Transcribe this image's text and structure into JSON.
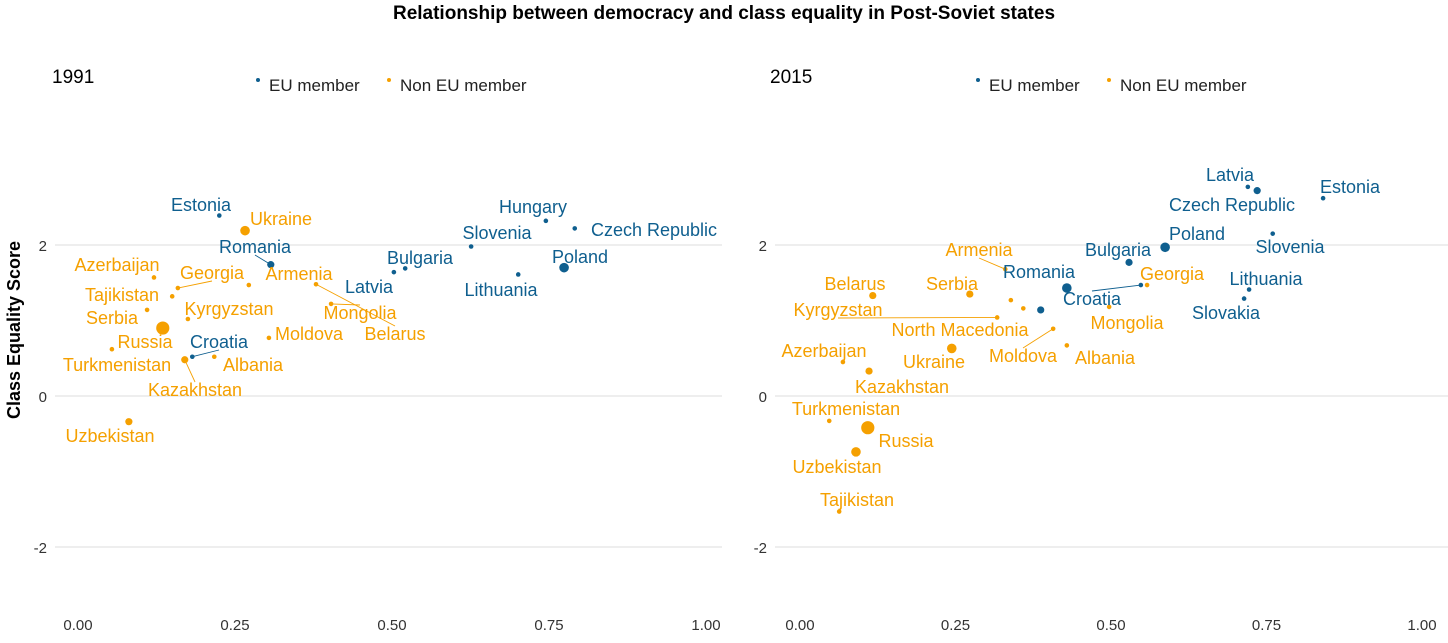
{
  "chart_data": [
    {
      "type": "scatter",
      "title": "Relationship between democracy and class equality in Post-Soviet states",
      "panel_title": "1991",
      "xlabel": "",
      "ylabel": "Class Equality Score",
      "xlim": [
        -0.05,
        1.03
      ],
      "ylim": [
        -2.8,
        3.2
      ],
      "xticks": [
        "0.00",
        "0.25",
        "0.50",
        "0.75",
        "1.00"
      ],
      "yticks": [
        "-2",
        "0",
        "2"
      ],
      "grid": "horizontal major",
      "legend": {
        "position": "top",
        "entries": [
          "EU member",
          "Non EU member"
        ]
      },
      "colors": {
        "EU member": "#0f5f8f",
        "Non EU member": "#f5a000"
      },
      "points": [
        {
          "name": "Estonia",
          "group": "EU member",
          "x": 0.225,
          "y": 2.39,
          "size": 1
        },
        {
          "name": "Ukraine",
          "group": "Non EU member",
          "x": 0.266,
          "y": 2.19,
          "size": 3
        },
        {
          "name": "Romania",
          "group": "EU member",
          "x": 0.307,
          "y": 1.74,
          "size": 2
        },
        {
          "name": "Azerbaijan",
          "group": "Non EU member",
          "x": 0.121,
          "y": 1.57,
          "size": 1
        },
        {
          "name": "Georgia",
          "group": "Non EU member",
          "x": 0.159,
          "y": 1.43,
          "size": 1
        },
        {
          "name": "Armenia",
          "group": "Non EU member",
          "x": 0.272,
          "y": 1.47,
          "size": 1
        },
        {
          "name": "Tajikistan",
          "group": "Non EU member",
          "x": 0.15,
          "y": 1.32,
          "size": 1
        },
        {
          "name": "Kyrgyzstan",
          "group": "Non EU member",
          "x": 0.175,
          "y": 1.02,
          "size": 1
        },
        {
          "name": "Serbia",
          "group": "Non EU member",
          "x": 0.11,
          "y": 1.14,
          "size": 1
        },
        {
          "name": "Russia",
          "group": "Non EU member",
          "x": 0.135,
          "y": 0.9,
          "size": 4
        },
        {
          "name": "Croatia",
          "group": "EU member",
          "x": 0.182,
          "y": 0.52,
          "size": 1
        },
        {
          "name": "Turkmenistan",
          "group": "Non EU member",
          "x": 0.054,
          "y": 0.62,
          "size": 1
        },
        {
          "name": "Albania",
          "group": "Non EU member",
          "x": 0.217,
          "y": 0.52,
          "size": 1
        },
        {
          "name": "Kazakhstan",
          "group": "Non EU member",
          "x": 0.17,
          "y": 0.48,
          "size": 2
        },
        {
          "name": "Moldova",
          "group": "Non EU member",
          "x": 0.304,
          "y": 0.77,
          "size": 1
        },
        {
          "name": "Mongolia",
          "group": "Non EU member",
          "x": 0.403,
          "y": 1.22,
          "size": 1
        },
        {
          "name": "Belarus",
          "group": "Non EU member",
          "x": 0.379,
          "y": 1.48,
          "size": 1
        },
        {
          "name": "Uzbekistan",
          "group": "Non EU member",
          "x": 0.081,
          "y": -0.34,
          "size": 2
        },
        {
          "name": "Latvia",
          "group": "EU member",
          "x": 0.503,
          "y": 1.64,
          "size": 1
        },
        {
          "name": "Bulgaria",
          "group": "EU member",
          "x": 0.521,
          "y": 1.69,
          "size": 1
        },
        {
          "name": "Slovenia",
          "group": "EU member",
          "x": 0.626,
          "y": 1.98,
          "size": 1
        },
        {
          "name": "Hungary",
          "group": "EU member",
          "x": 0.745,
          "y": 2.32,
          "size": 1
        },
        {
          "name": "Czech Republic",
          "group": "EU member",
          "x": 0.791,
          "y": 2.22,
          "size": 1
        },
        {
          "name": "Lithuania",
          "group": "EU member",
          "x": 0.701,
          "y": 1.61,
          "size": 1
        },
        {
          "name": "Poland",
          "group": "EU member",
          "x": 0.774,
          "y": 1.7,
          "size": 3
        }
      ]
    },
    {
      "type": "scatter",
      "panel_title": "2015",
      "xlabel": "",
      "ylabel": "",
      "xlim": [
        -0.05,
        1.03
      ],
      "ylim": [
        -2.8,
        3.2
      ],
      "xticks": [
        "0.00",
        "0.25",
        "0.50",
        "0.75",
        "1.00"
      ],
      "yticks": [
        "-2",
        "0",
        "2"
      ],
      "grid": "horizontal major",
      "legend": {
        "position": "top",
        "entries": [
          "EU member",
          "Non EU member"
        ]
      },
      "colors": {
        "EU member": "#0f5f8f",
        "Non EU member": "#f5a000"
      },
      "points": [
        {
          "name": "Latvia",
          "group": "EU member",
          "x": 0.72,
          "y": 2.77,
          "size": 1
        },
        {
          "name": "Czech Republic",
          "group": "EU member",
          "x": 0.735,
          "y": 2.72,
          "size": 2
        },
        {
          "name": "Estonia",
          "group": "EU member",
          "x": 0.841,
          "y": 2.62,
          "size": 1
        },
        {
          "name": "Slovenia",
          "group": "EU member",
          "x": 0.76,
          "y": 2.15,
          "size": 1
        },
        {
          "name": "Poland",
          "group": "EU member",
          "x": 0.587,
          "y": 1.97,
          "size": 3
        },
        {
          "name": "Bulgaria",
          "group": "EU member",
          "x": 0.529,
          "y": 1.77,
          "size": 2
        },
        {
          "name": "Lithuania",
          "group": "EU member",
          "x": 0.722,
          "y": 1.41,
          "size": 1
        },
        {
          "name": "Slovakia",
          "group": "EU member",
          "x": 0.714,
          "y": 1.29,
          "size": 1
        },
        {
          "name": "Croatia",
          "group": "EU member",
          "x": 0.548,
          "y": 1.47,
          "size": 1
        },
        {
          "name": "Romania",
          "group": "EU member",
          "x": 0.429,
          "y": 1.43,
          "size": 3
        },
        {
          "name": "",
          "group": "EU member",
          "x": 0.387,
          "y": 1.14,
          "size": 2
        },
        {
          "name": "Georgia",
          "group": "Non EU member",
          "x": 0.558,
          "y": 1.47,
          "size": 1
        },
        {
          "name": "Mongolia",
          "group": "Non EU member",
          "x": 0.497,
          "y": 1.18,
          "size": 1
        },
        {
          "name": "Armenia",
          "group": "Non EU member",
          "x": 0.33,
          "y": 1.68,
          "size": 1
        },
        {
          "name": "North Macedonia",
          "group": "Non EU member",
          "x": 0.339,
          "y": 1.27,
          "size": 1
        },
        {
          "name": "",
          "group": "Non EU member",
          "x": 0.359,
          "y": 1.16,
          "size": 1
        },
        {
          "name": "Belarus",
          "group": "Non EU member",
          "x": 0.117,
          "y": 1.33,
          "size": 2
        },
        {
          "name": "Serbia",
          "group": "Non EU member",
          "x": 0.273,
          "y": 1.35,
          "size": 2
        },
        {
          "name": "Kyrgyzstan",
          "group": "Non EU member",
          "x": 0.317,
          "y": 1.04,
          "size": 1
        },
        {
          "name": "Ukraine",
          "group": "Non EU member",
          "x": 0.244,
          "y": 0.63,
          "size": 3
        },
        {
          "name": "Moldova",
          "group": "Non EU member",
          "x": 0.407,
          "y": 0.89,
          "size": 1
        },
        {
          "name": "Albania",
          "group": "Non EU member",
          "x": 0.429,
          "y": 0.67,
          "size": 1
        },
        {
          "name": "Azerbaijan",
          "group": "Non EU member",
          "x": 0.069,
          "y": 0.45,
          "size": 1
        },
        {
          "name": "Kazakhstan",
          "group": "Non EU member",
          "x": 0.111,
          "y": 0.33,
          "size": 2
        },
        {
          "name": "Turkmenistan",
          "group": "Non EU member",
          "x": 0.047,
          "y": -0.33,
          "size": 1
        },
        {
          "name": "Russia",
          "group": "Non EU member",
          "x": 0.109,
          "y": -0.42,
          "size": 4
        },
        {
          "name": "Uzbekistan",
          "group": "Non EU member",
          "x": 0.09,
          "y": -0.74,
          "size": 3
        },
        {
          "name": "Tajikistan",
          "group": "Non EU member",
          "x": 0.063,
          "y": -1.53,
          "size": 1
        }
      ]
    }
  ]
}
